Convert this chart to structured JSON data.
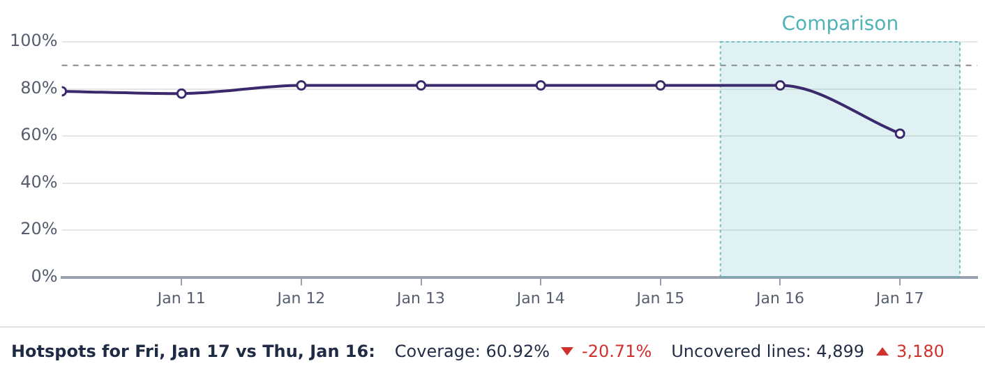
{
  "chart_data": {
    "type": "line",
    "x": [
      "--01-10",
      "--01-11",
      "--01-12",
      "--01-13",
      "--01-14",
      "--01-15",
      "--01-16",
      "--01-17"
    ],
    "series": [
      {
        "color": "#3b2a6b",
        "values": [
          79,
          78,
          81.5,
          81.5,
          81.5,
          81.5,
          81.5,
          61
        ]
      }
    ],
    "xlim": [
      "--01-10",
      "--01-17T15:30"
    ],
    "xticks": [
      {
        "value": "--01-11",
        "label": "Jan 11"
      },
      {
        "value": "--01-12",
        "label": "Jan 12"
      },
      {
        "value": "--01-13",
        "label": "Jan 13"
      },
      {
        "value": "--01-14",
        "label": "Jan 14"
      },
      {
        "value": "--01-15",
        "label": "Jan 15"
      },
      {
        "value": "--01-16",
        "label": "Jan 16"
      },
      {
        "value": "--01-17",
        "label": "Jan 17"
      }
    ],
    "ylim": [
      0,
      100
    ],
    "yticks": [
      {
        "value": 0,
        "label": "0%"
      },
      {
        "value": 20,
        "label": "20%"
      },
      {
        "value": 40,
        "label": "40%"
      },
      {
        "value": 60,
        "label": "60%"
      },
      {
        "value": 80,
        "label": "80%"
      },
      {
        "value": 100,
        "label": "100%"
      }
    ],
    "grid": "y",
    "legend": false,
    "marker": "circle",
    "line_style": "solid",
    "ref_lines": [
      {
        "axis": "y",
        "value": 90,
        "color": "#8a8a8a",
        "line_style": "dashed"
      }
    ],
    "bands": [
      {
        "axis": "x",
        "from": "--01-15T12:00",
        "to": "--01-17T12:00",
        "label": "Comparison",
        "color": "#4fb3b8"
      }
    ],
    "annotations": [
      "Hotspots for Fri, Jan 17 vs Thu, Jan 16:",
      "Coverage: 60.92%",
      "-20.71%",
      "Uncovered lines: 4,899",
      "3,180"
    ]
  }
}
